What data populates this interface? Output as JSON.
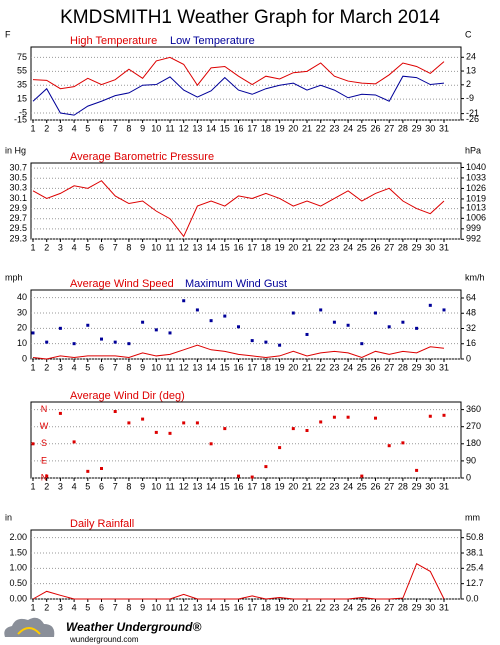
{
  "title": "KMDSMITH1 Weather Graph for March 2014",
  "footer": {
    "brand": "Weather Underground®",
    "url": "wunderground.com"
  },
  "chart_data": [
    {
      "type": "line",
      "ylabel": "F",
      "y2label": "C",
      "categories": [
        "1",
        "2",
        "3",
        "4",
        "5",
        "6",
        "7",
        "8",
        "9",
        "10",
        "11",
        "12",
        "13",
        "14",
        "15",
        "16",
        "17",
        "18",
        "19",
        "20",
        "21",
        "22",
        "23",
        "24",
        "25",
        "26",
        "27",
        "28",
        "29",
        "30",
        "31"
      ],
      "ylim": [
        -15,
        90
      ],
      "yticks": [
        75,
        55,
        35,
        15,
        -5,
        -15
      ],
      "y2lim": [
        -26.1,
        32.2
      ],
      "y2ticks": [
        24,
        13,
        2,
        -9,
        -21,
        -26
      ],
      "grid": true,
      "series": [
        {
          "name": "High Temperature",
          "color": "#dd0000",
          "style": "line",
          "values": [
            43,
            42,
            30,
            33,
            45,
            36,
            43,
            58,
            45,
            70,
            75,
            65,
            35,
            60,
            62,
            48,
            36,
            48,
            44,
            53,
            55,
            67,
            48,
            41,
            38,
            37,
            50,
            67,
            62,
            52,
            69
          ]
        },
        {
          "name": "Low Temperature",
          "color": "#000099",
          "style": "line",
          "values": [
            12,
            30,
            -5,
            -8,
            5,
            12,
            20,
            24,
            35,
            36,
            47,
            28,
            18,
            27,
            46,
            28,
            22,
            30,
            35,
            38,
            28,
            35,
            28,
            17,
            22,
            21,
            12,
            48,
            46,
            36,
            38
          ]
        }
      ]
    },
    {
      "type": "line",
      "ylabel": "in Hg",
      "y2label": "hPa",
      "categories": [
        "1",
        "2",
        "3",
        "4",
        "5",
        "6",
        "7",
        "8",
        "9",
        "10",
        "11",
        "12",
        "13",
        "14",
        "15",
        "16",
        "17",
        "18",
        "19",
        "20",
        "21",
        "22",
        "23",
        "24",
        "25",
        "26",
        "27",
        "28",
        "29",
        "30",
        "31"
      ],
      "ylim": [
        29.3,
        30.8
      ],
      "yticks": [
        30.7,
        30.5,
        30.3,
        30.1,
        29.9,
        29.7,
        29.5,
        29.3
      ],
      "y2lim": [
        992.2,
        1043.0
      ],
      "y2ticks": [
        1040,
        1033,
        1026,
        1019,
        1013,
        1006,
        999,
        992
      ],
      "grid": true,
      "series": [
        {
          "name": "Average Barometric Pressure",
          "color": "#dd0000",
          "style": "line",
          "values": [
            30.25,
            30.1,
            30.2,
            30.35,
            30.3,
            30.45,
            30.15,
            30.0,
            30.05,
            29.85,
            29.7,
            29.35,
            29.95,
            30.05,
            29.95,
            30.15,
            30.1,
            30.2,
            30.1,
            29.95,
            30.05,
            29.95,
            30.1,
            30.25,
            30.05,
            30.2,
            30.3,
            30.05,
            29.9,
            29.8,
            30.05
          ]
        }
      ]
    },
    {
      "type": "line",
      "ylabel": "mph",
      "y2label": "km/h",
      "categories": [
        "1",
        "2",
        "3",
        "4",
        "5",
        "6",
        "7",
        "8",
        "9",
        "10",
        "11",
        "12",
        "13",
        "14",
        "15",
        "16",
        "17",
        "18",
        "19",
        "20",
        "21",
        "22",
        "23",
        "24",
        "25",
        "26",
        "27",
        "28",
        "29",
        "30",
        "31"
      ],
      "ylim": [
        0,
        45
      ],
      "yticks": [
        40,
        30,
        20,
        10,
        0
      ],
      "y2lim": [
        0,
        72.4
      ],
      "y2ticks": [
        64,
        48,
        32,
        16,
        0
      ],
      "grid": true,
      "series": [
        {
          "name": "Average Wind Speed",
          "color": "#dd0000",
          "style": "line",
          "values": [
            1,
            0,
            2,
            1,
            2,
            2,
            2,
            1,
            4,
            2,
            3,
            6,
            9,
            6,
            5,
            3,
            2,
            1,
            2,
            5,
            2,
            4,
            5,
            4,
            1,
            5,
            3,
            5,
            4,
            8,
            7
          ]
        },
        {
          "name": "Maximum Wind Gust",
          "color": "#000099",
          "style": "square",
          "values": [
            17,
            11,
            20,
            10,
            22,
            13,
            11,
            10,
            24,
            19,
            17,
            38,
            32,
            25,
            28,
            21,
            12,
            11,
            9,
            30,
            16,
            32,
            24,
            22,
            10,
            30,
            21,
            24,
            20,
            35,
            32
          ]
        }
      ]
    },
    {
      "type": "scatter",
      "y2label": null,
      "categories": [
        "1",
        "2",
        "3",
        "4",
        "5",
        "6",
        "7",
        "8",
        "9",
        "10",
        "11",
        "12",
        "13",
        "14",
        "15",
        "16",
        "17",
        "18",
        "19",
        "20",
        "21",
        "22",
        "23",
        "24",
        "25",
        "26",
        "27",
        "28",
        "29",
        "30",
        "31"
      ],
      "ylim": [
        0,
        400
      ],
      "yticks": [
        {
          "value": 360,
          "label": "N"
        },
        {
          "value": 270,
          "label": "W"
        },
        {
          "value": 180,
          "label": "S"
        },
        {
          "value": 90,
          "label": "E"
        },
        {
          "value": 0,
          "label": "N"
        }
      ],
      "y2lim": [
        0,
        400
      ],
      "y2ticks": [
        360,
        270,
        180,
        90,
        0
      ],
      "grid": true,
      "series": [
        {
          "name": "Average Wind Dir (deg)",
          "color": "#dd0000",
          "style": "square",
          "values": [
            180,
            10,
            340,
            190,
            35,
            50,
            350,
            290,
            310,
            240,
            235,
            290,
            290,
            180,
            260,
            10,
            5,
            60,
            160,
            260,
            250,
            295,
            320,
            320,
            10,
            315,
            170,
            185,
            40,
            325,
            330
          ]
        }
      ]
    },
    {
      "type": "line",
      "ylabel": "in",
      "y2label": "mm",
      "categories": [
        "1",
        "2",
        "3",
        "4",
        "5",
        "6",
        "7",
        "8",
        "9",
        "10",
        "11",
        "12",
        "13",
        "14",
        "15",
        "16",
        "17",
        "18",
        "19",
        "20",
        "21",
        "22",
        "23",
        "24",
        "25",
        "26",
        "27",
        "28",
        "29",
        "30",
        "31"
      ],
      "ylim": [
        0,
        2.25
      ],
      "yticks": [
        {
          "value": 2,
          "label": "2.00"
        },
        {
          "value": 1.5,
          "label": "1.50"
        },
        {
          "value": 1,
          "label": "1.00"
        },
        {
          "value": 0.5,
          "label": "0.50"
        },
        {
          "value": 0,
          "label": "0.00"
        }
      ],
      "y2lim": [
        0,
        57.15
      ],
      "y2ticks": [
        50.8,
        38.1,
        25.4,
        12.7,
        {
          "value": 0,
          "label": "0.0"
        }
      ],
      "grid": true,
      "series": [
        {
          "name": "Daily Rainfall",
          "color": "#dd0000",
          "style": "line",
          "values": [
            0,
            0.25,
            0.12,
            0,
            0,
            0,
            0,
            0,
            0,
            0,
            0,
            0.15,
            0,
            0,
            0,
            0,
            0.1,
            0,
            0.05,
            0,
            0,
            0,
            0,
            0,
            0.05,
            0,
            0,
            0.03,
            1.15,
            0.9,
            0
          ]
        }
      ]
    }
  ]
}
